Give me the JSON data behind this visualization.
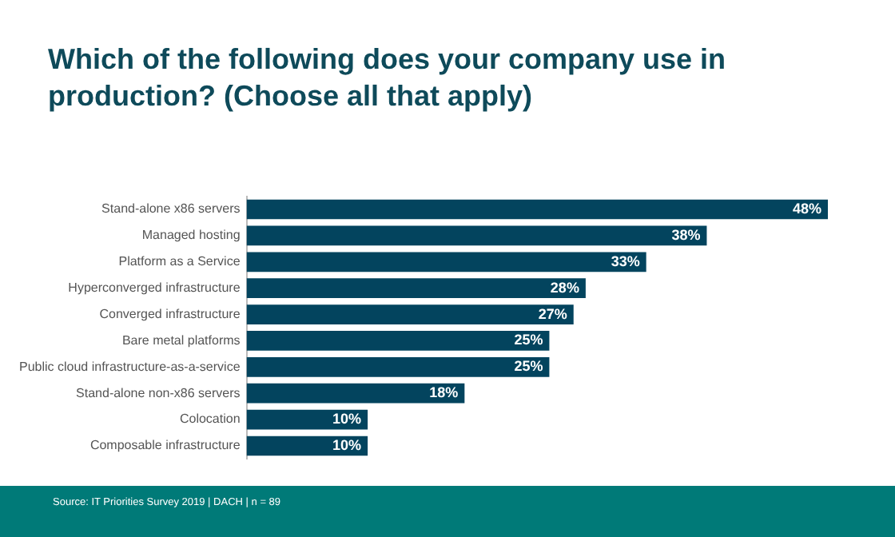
{
  "chart_data": {
    "type": "bar",
    "orientation": "horizontal",
    "title": "Which of the following does your company use in production? (Choose all that apply)",
    "categories": [
      "Stand-alone x86 servers",
      "Managed hosting",
      "Platform as a Service",
      "Hyperconverged infrastructure",
      "Converged infrastructure",
      "Bare metal platforms",
      "Public cloud infrastructure-as-a-service",
      "Stand-alone non-x86 servers",
      "Colocation",
      "Composable infrastructure"
    ],
    "values": [
      48,
      38,
      33,
      28,
      27,
      25,
      25,
      18,
      10,
      10
    ],
    "value_labels": [
      "48%",
      "38%",
      "33%",
      "28%",
      "27%",
      "25%",
      "25%",
      "18%",
      "10%",
      "10%"
    ],
    "color": "#03445e",
    "legend": false,
    "tick_labels": "y",
    "annotations": [
      "Source: IT Priorities Survey 2019 | DACH | n = 89"
    ]
  }
}
